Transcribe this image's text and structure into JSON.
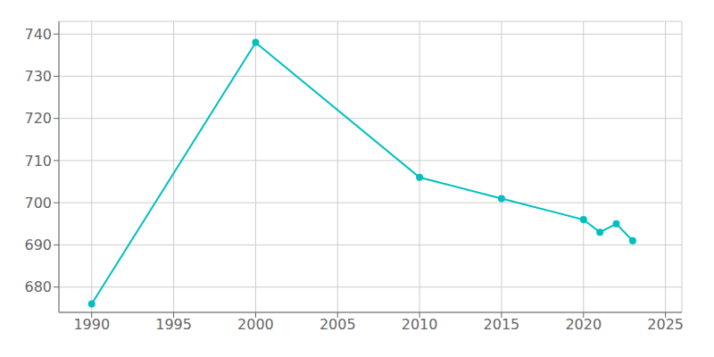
{
  "chart_data": {
    "type": "line",
    "x": [
      1990,
      2000,
      2010,
      2015,
      2020,
      2021,
      2022,
      2023
    ],
    "values": [
      676,
      738,
      706,
      701,
      696,
      693,
      695,
      691
    ],
    "color": "#00BFBF",
    "marker": "circle",
    "xlim": [
      1988,
      2026
    ],
    "xticks": [
      1990,
      1995,
      2000,
      2005,
      2010,
      2015,
      2020,
      2025
    ],
    "ylim": [
      674,
      743
    ],
    "yticks": [
      680,
      690,
      700,
      710,
      720,
      730,
      740
    ],
    "grid": true
  }
}
